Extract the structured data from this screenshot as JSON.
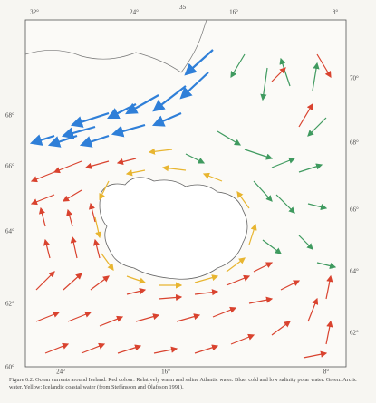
{
  "page_number": "35",
  "map": {
    "top_labels": [
      "32°",
      "24°",
      "16°",
      "8°"
    ],
    "bottom_labels": [
      "24°",
      "16°",
      "8°"
    ],
    "left_labels": [
      "68°",
      "66°",
      "64°",
      "62°",
      "60°"
    ],
    "right_labels": [
      "70°",
      "68°",
      "66°",
      "64°",
      "62°"
    ]
  },
  "caption": "Figure 6.2.   Ocean currents around Iceland. Red colour: Relatively warm and saline Atlantic water. Blue: cold and low salinity polar water. Green: Arctic water. Yellow: Icelandic coastal water (from Stefánsson and Ólafsson 1991)."
}
